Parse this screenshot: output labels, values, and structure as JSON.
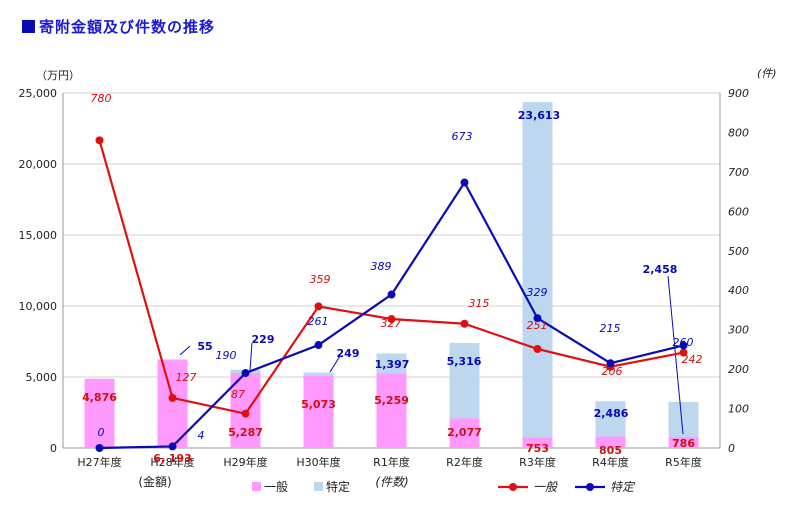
{
  "chart_data": {
    "type": "bar+line",
    "title": "寄附金額及び件数の推移",
    "categories": [
      "H27年度",
      "H28年度",
      "H29年度",
      "H30年度",
      "R1年度",
      "R2年度",
      "R3年度",
      "R4年度",
      "R5年度"
    ],
    "y_left": {
      "label": "（万円）",
      "ylim": [
        0,
        25000
      ],
      "ticks": [
        "0",
        "5,000",
        "10,000",
        "15,000",
        "20,000",
        "25,000"
      ]
    },
    "y_right": {
      "label": "(件)",
      "ylim": [
        0,
        900
      ],
      "ticks": [
        "0",
        "100",
        "200",
        "300",
        "400",
        "500",
        "600",
        "700",
        "800",
        "900"
      ]
    },
    "bar_series": [
      {
        "name": "一般",
        "color": "#ff99ff",
        "values": [
          4876,
          6193,
          5287,
          5073,
          5259,
          2077,
          753,
          805,
          786
        ],
        "labels": [
          "4,876",
          "6, 193",
          "5,287",
          "5,073",
          "5,259",
          "2,077",
          "753",
          "805",
          "786"
        ]
      },
      {
        "name": "特定",
        "color": "#bdd7ee",
        "values": [
          0,
          55,
          229,
          249,
          1397,
          5316,
          23613,
          2486,
          2458
        ],
        "labels": [
          "",
          "55",
          "229",
          "249",
          "1,397",
          "5,316",
          "23,613",
          "2,486",
          "2,458"
        ]
      }
    ],
    "line_series": [
      {
        "name": "一般",
        "color": "#e01010",
        "values": [
          780,
          127,
          87,
          359,
          327,
          315,
          251,
          206,
          242
        ],
        "labels": [
          "780",
          "127",
          "87",
          "359",
          "327",
          "315",
          "251",
          "206",
          "242"
        ]
      },
      {
        "name": "特定",
        "color": "#0a0ab4",
        "values": [
          0,
          4,
          190,
          261,
          389,
          673,
          329,
          215,
          260
        ],
        "labels": [
          "0",
          "4",
          "190",
          "261",
          "389",
          "673",
          "329",
          "215",
          "260"
        ]
      }
    ],
    "annotations": {
      "bar_group_label": "(金額)",
      "line_group_label": "(件数)"
    },
    "grid": true,
    "legend": "bottom"
  }
}
